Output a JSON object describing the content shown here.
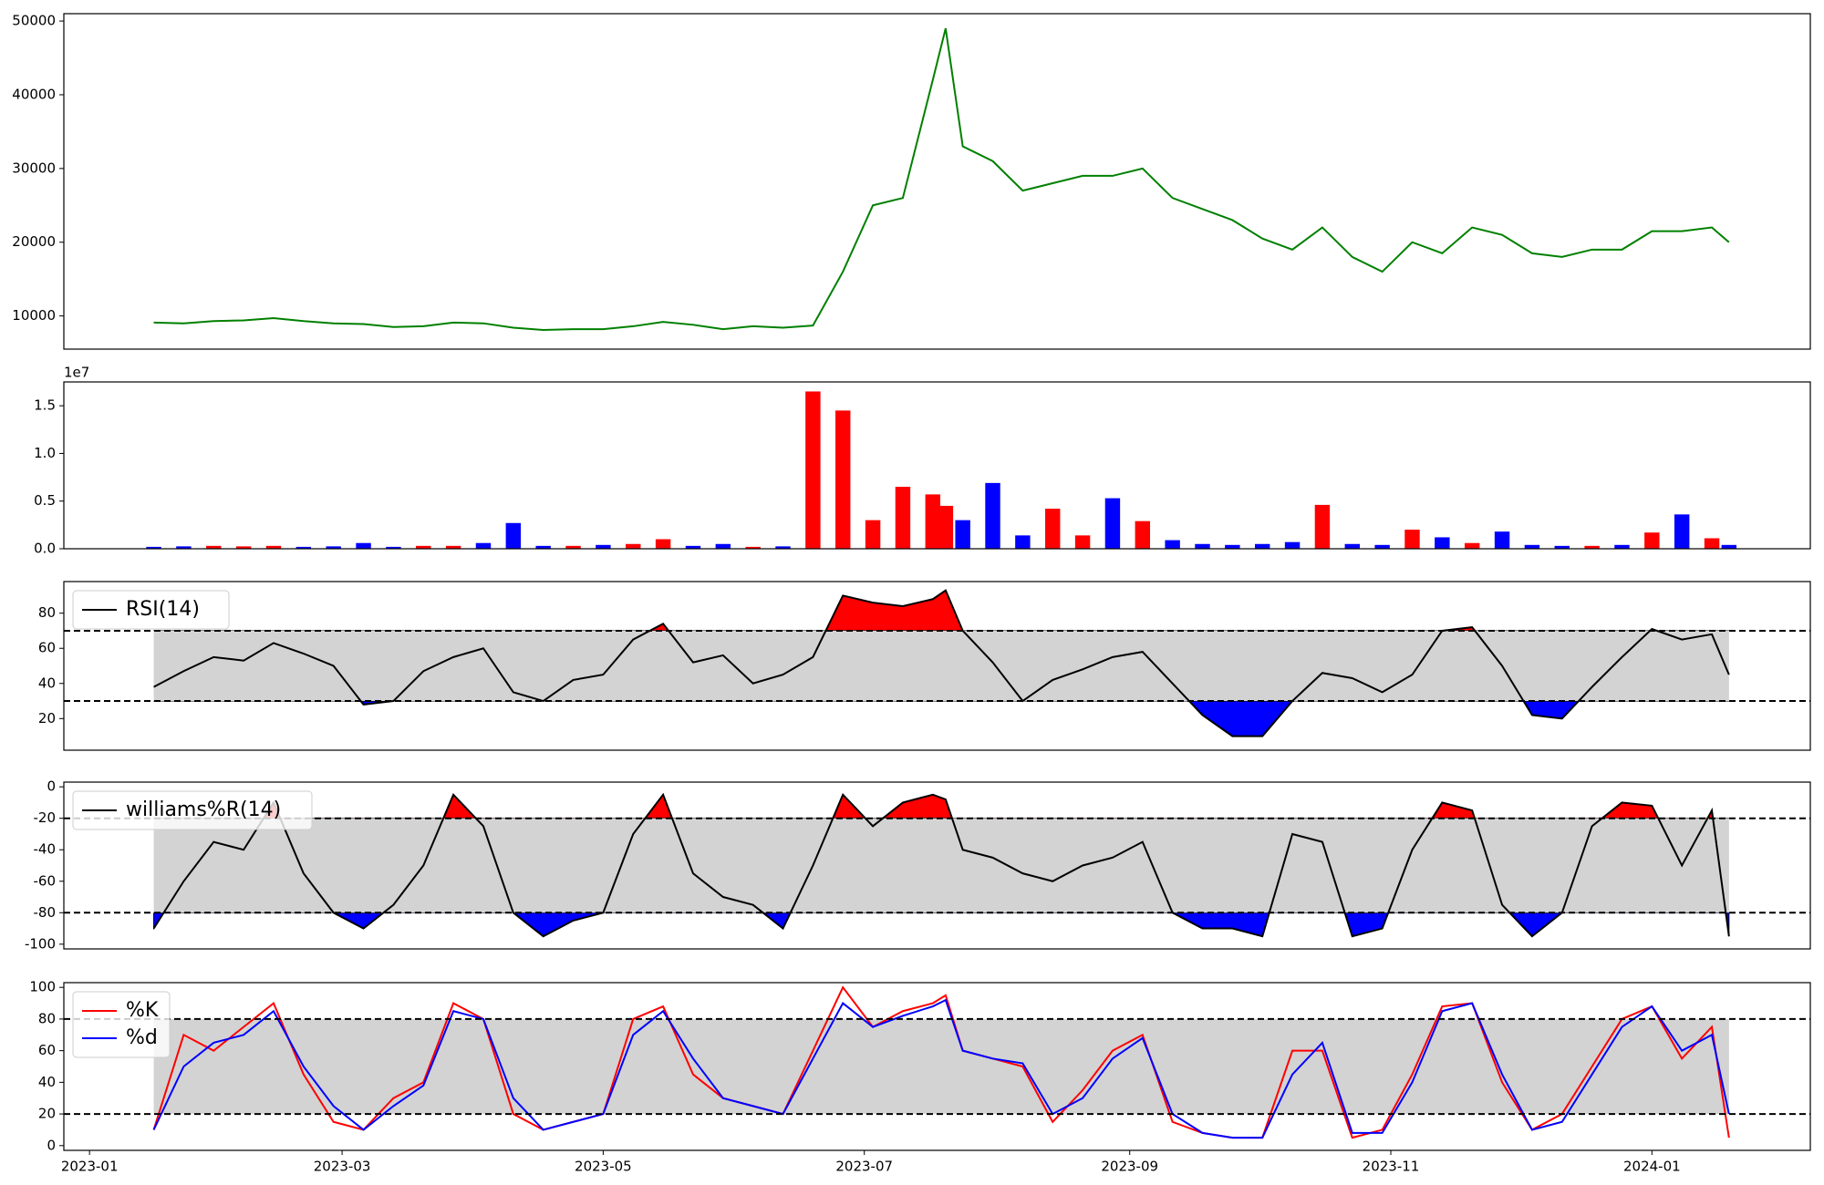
{
  "chart_data": {
    "type": "multi",
    "x": [
      "2023-01-16",
      "2023-01-23",
      "2023-01-30",
      "2023-02-06",
      "2023-02-13",
      "2023-02-20",
      "2023-02-27",
      "2023-03-06",
      "2023-03-13",
      "2023-03-20",
      "2023-03-27",
      "2023-04-03",
      "2023-04-10",
      "2023-04-17",
      "2023-04-24",
      "2023-05-01",
      "2023-05-08",
      "2023-05-15",
      "2023-05-22",
      "2023-05-29",
      "2023-06-05",
      "2023-06-12",
      "2023-06-19",
      "2023-06-26",
      "2023-07-03",
      "2023-07-10",
      "2023-07-17",
      "2023-07-20",
      "2023-07-24",
      "2023-07-31",
      "2023-08-07",
      "2023-08-14",
      "2023-08-21",
      "2023-08-28",
      "2023-09-04",
      "2023-09-11",
      "2023-09-18",
      "2023-09-25",
      "2023-10-02",
      "2023-10-09",
      "2023-10-16",
      "2023-10-23",
      "2023-10-30",
      "2023-11-06",
      "2023-11-13",
      "2023-11-20",
      "2023-11-27",
      "2023-12-04",
      "2023-12-11",
      "2023-12-18",
      "2023-12-25",
      "2024-01-01",
      "2024-01-08",
      "2024-01-15",
      "2024-01-19"
    ],
    "xlim": [
      "2022-12-26",
      "2024-02-07"
    ],
    "xticks": [
      {
        "value": "2023-01-01",
        "label": "2023-01"
      },
      {
        "value": "2023-03-01",
        "label": "2023-03"
      },
      {
        "value": "2023-05-01",
        "label": "2023-05"
      },
      {
        "value": "2023-07-01",
        "label": "2023-07"
      },
      {
        "value": "2023-09-01",
        "label": "2023-09"
      },
      {
        "value": "2023-11-01",
        "label": "2023-11"
      },
      {
        "value": "2024-01-01",
        "label": "2024-01"
      }
    ],
    "panels": [
      {
        "type": "line",
        "color": "#008000",
        "values": [
          9100,
          9000,
          9300,
          9400,
          9700,
          9300,
          9000,
          8900,
          8500,
          8600,
          9100,
          9000,
          8400,
          8100,
          8200,
          8200,
          8600,
          9200,
          8800,
          8200,
          8600,
          8400,
          8700,
          16000,
          25000,
          26000,
          42000,
          49000,
          33000,
          31000,
          27000,
          28000,
          29000,
          29000,
          30000,
          26000,
          24500,
          23000,
          20500,
          19000,
          22000,
          18000,
          16000,
          20000,
          18500,
          22000,
          21000,
          18500,
          18000,
          19000,
          19000,
          21500,
          21500,
          22000,
          20000
        ],
        "ylim": [
          5500,
          51000
        ],
        "yticks": [
          10000,
          20000,
          30000,
          40000,
          50000
        ]
      },
      {
        "type": "bar",
        "offset_label": "1e7",
        "values": [
          200000,
          250000,
          300000,
          250000,
          300000,
          200000,
          250000,
          600000,
          200000,
          300000,
          300000,
          600000,
          2700000,
          300000,
          300000,
          400000,
          500000,
          1000000,
          300000,
          500000,
          200000,
          250000,
          16500000,
          14500000,
          3000000,
          6500000,
          5700000,
          4500000,
          3000000,
          6900000,
          1400000,
          4200000,
          1400000,
          5300000,
          2900000,
          900000,
          500000,
          400000,
          500000,
          700000,
          4600000,
          500000,
          400000,
          2000000,
          1200000,
          600000,
          1800000,
          400000,
          300000,
          300000,
          400000,
          1700000,
          3600000,
          1100000,
          400000
        ],
        "colors": [
          "#0000ff",
          "#0000ff",
          "#ff0000",
          "#ff0000",
          "#ff0000",
          "#0000ff",
          "#0000ff",
          "#0000ff",
          "#0000ff",
          "#ff0000",
          "#ff0000",
          "#0000ff",
          "#0000ff",
          "#0000ff",
          "#ff0000",
          "#0000ff",
          "#ff0000",
          "#ff0000",
          "#0000ff",
          "#0000ff",
          "#ff0000",
          "#0000ff",
          "#ff0000",
          "#ff0000",
          "#ff0000",
          "#ff0000",
          "#ff0000",
          "#ff0000",
          "#0000ff",
          "#0000ff",
          "#0000ff",
          "#ff0000",
          "#ff0000",
          "#0000ff",
          "#ff0000",
          "#0000ff",
          "#0000ff",
          "#0000ff",
          "#0000ff",
          "#0000ff",
          "#ff0000",
          "#0000ff",
          "#0000ff",
          "#ff0000",
          "#0000ff",
          "#ff0000",
          "#0000ff",
          "#0000ff",
          "#0000ff",
          "#ff0000",
          "#0000ff",
          "#ff0000",
          "#0000ff",
          "#ff0000",
          "#0000ff"
        ],
        "ylim": [
          0,
          17500000
        ],
        "yticks": [
          {
            "value": 0,
            "label": "0.0"
          },
          {
            "value": 5000000,
            "label": "0.5"
          },
          {
            "value": 10000000,
            "label": "1.0"
          },
          {
            "value": 15000000,
            "label": "1.5"
          }
        ]
      },
      {
        "type": "line",
        "series": [
          {
            "name": "RSI(14)",
            "color": "#000000",
            "values": [
              38,
              47,
              55,
              53,
              63,
              57,
              50,
              28,
              30,
              47,
              55,
              60,
              35,
              30,
              42,
              45,
              65,
              74,
              52,
              56,
              40,
              45,
              55,
              90,
              86,
              84,
              88,
              93,
              70,
              52,
              30,
              42,
              48,
              55,
              58,
              40,
              22,
              10,
              10,
              30,
              46,
              43,
              35,
              45,
              70,
              72,
              50,
              22,
              20,
              38,
              55,
              71,
              65,
              68,
              45
            ]
          }
        ],
        "hlines": [
          30,
          70
        ],
        "band_color": "#d3d3d3",
        "over_color": "#ff0000",
        "under_color": "#0000ff",
        "legend": "upper left",
        "ylim": [
          2,
          98
        ],
        "yticks": [
          20,
          40,
          60,
          80
        ]
      },
      {
        "type": "line",
        "series": [
          {
            "name": "williams%R(14)",
            "color": "#000000",
            "values": [
              -90,
              -60,
              -35,
              -40,
              -10,
              -55,
              -80,
              -90,
              -75,
              -50,
              -5,
              -25,
              -80,
              -95,
              -85,
              -80,
              -30,
              -5,
              -55,
              -70,
              -75,
              -90,
              -50,
              -5,
              -25,
              -10,
              -5,
              -8,
              -40,
              -45,
              -55,
              -60,
              -50,
              -45,
              -35,
              -80,
              -90,
              -90,
              -95,
              -30,
              -35,
              -95,
              -90,
              -40,
              -10,
              -15,
              -75,
              -95,
              -80,
              -25,
              -10,
              -12,
              -50,
              -15,
              -95
            ]
          }
        ],
        "hlines": [
          -80,
          -20
        ],
        "band_color": "#d3d3d3",
        "over_color": "#ff0000",
        "under_color": "#0000ff",
        "legend": "upper left",
        "ylim": [
          -103,
          3
        ],
        "yticks": [
          0,
          -20,
          -40,
          -60,
          -80,
          -100
        ]
      },
      {
        "type": "line",
        "series": [
          {
            "name": "%K",
            "color": "#ff0000",
            "values": [
              10,
              70,
              60,
              75,
              90,
              45,
              15,
              10,
              30,
              40,
              90,
              80,
              20,
              10,
              15,
              20,
              80,
              88,
              45,
              30,
              25,
              20,
              60,
              100,
              75,
              85,
              90,
              95,
              60,
              55,
              50,
              15,
              35,
              60,
              70,
              15,
              8,
              5,
              5,
              60,
              60,
              5,
              10,
              45,
              88,
              90,
              40,
              10,
              20,
              50,
              80,
              88,
              55,
              75,
              5
            ]
          },
          {
            "name": "%d",
            "color": "#0000ff",
            "values": [
              10,
              50,
              65,
              70,
              85,
              50,
              25,
              10,
              25,
              38,
              85,
              80,
              30,
              10,
              15,
              20,
              70,
              85,
              55,
              30,
              25,
              20,
              55,
              90,
              75,
              82,
              88,
              92,
              60,
              55,
              52,
              20,
              30,
              55,
              68,
              20,
              8,
              5,
              5,
              45,
              65,
              8,
              8,
              40,
              85,
              90,
              45,
              10,
              15,
              45,
              75,
              88,
              60,
              70,
              20
            ]
          }
        ],
        "hlines": [
          20,
          80
        ],
        "band_color": "#d3d3d3",
        "legend": "upper left",
        "ylim": [
          -3,
          103
        ],
        "yticks": [
          0,
          20,
          40,
          60,
          80,
          100
        ]
      }
    ]
  }
}
